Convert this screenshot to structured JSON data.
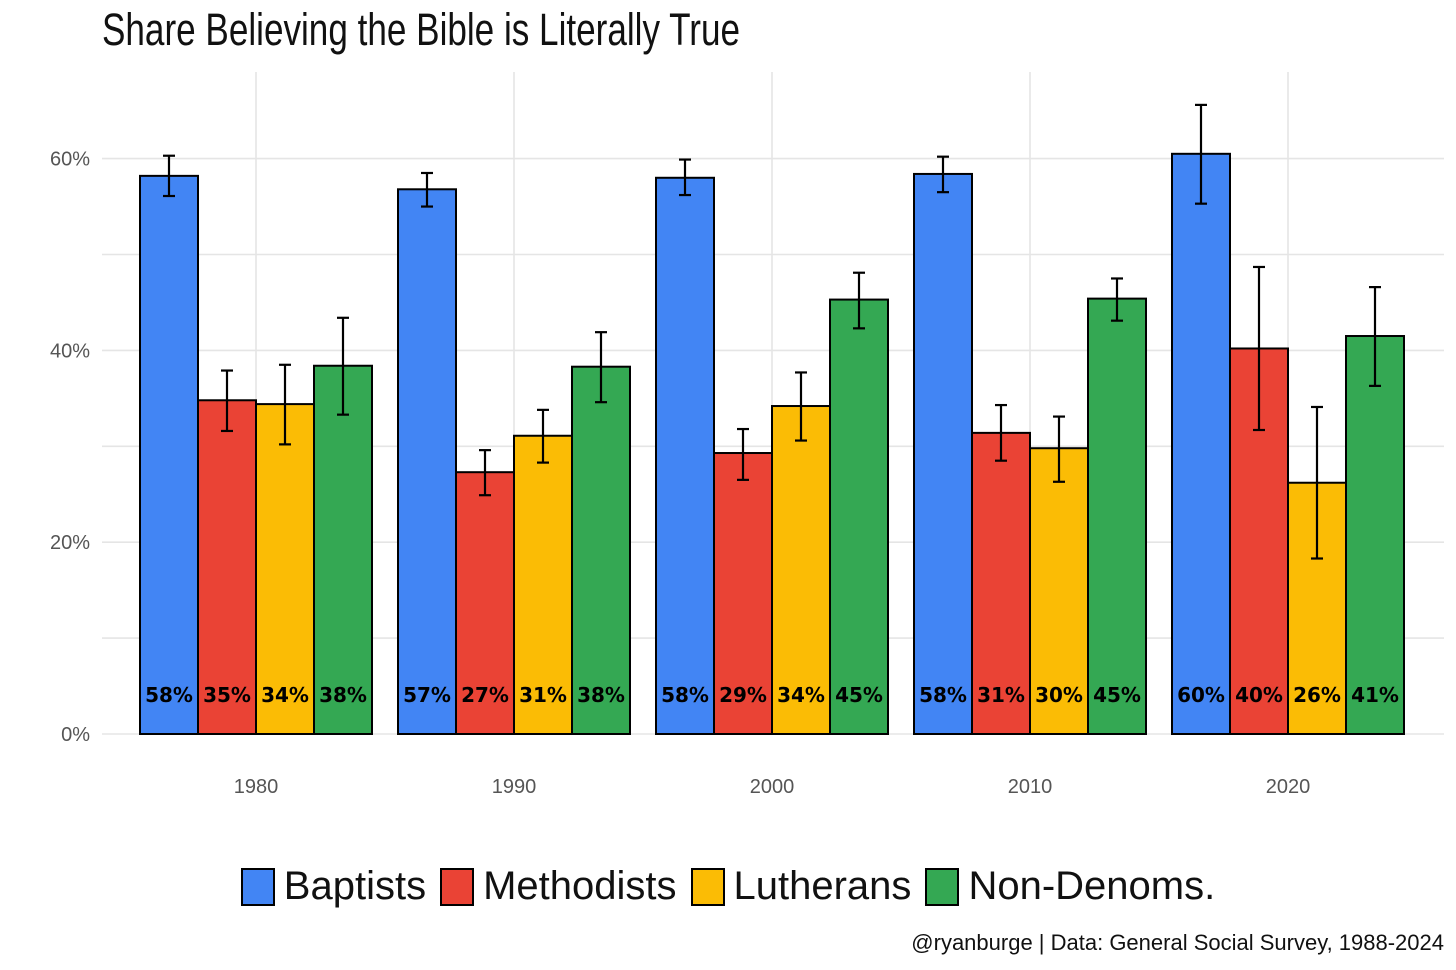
{
  "chart_data": {
    "type": "bar",
    "title": "Share Believing the Bible is Literally True",
    "xlabel": "",
    "ylabel": "",
    "categories": [
      "1980",
      "1990",
      "2000",
      "2010",
      "2020"
    ],
    "ylim": [
      0,
      0.68
    ],
    "yticks": [
      0,
      0.2,
      0.4,
      0.6
    ],
    "ytick_labels": [
      "0%",
      "20%",
      "40%",
      "60%"
    ],
    "grid": true,
    "legend_position": "bottom",
    "series": [
      {
        "name": "Baptists",
        "color": "#4285f4",
        "values": [
          0.582,
          0.568,
          0.58,
          0.584,
          0.605
        ],
        "lower": [
          0.561,
          0.55,
          0.562,
          0.565,
          0.553
        ],
        "upper": [
          0.603,
          0.585,
          0.599,
          0.602,
          0.656
        ],
        "labels": [
          "58%",
          "57%",
          "58%",
          "58%",
          "60%"
        ]
      },
      {
        "name": "Methodists",
        "color": "#ea4335",
        "values": [
          0.348,
          0.273,
          0.293,
          0.314,
          0.402
        ],
        "lower": [
          0.316,
          0.249,
          0.265,
          0.285,
          0.317
        ],
        "upper": [
          0.379,
          0.296,
          0.318,
          0.343,
          0.487
        ],
        "labels": [
          "35%",
          "27%",
          "29%",
          "31%",
          "40%"
        ]
      },
      {
        "name": "Lutherans",
        "color": "#fbbc05",
        "values": [
          0.344,
          0.311,
          0.342,
          0.298,
          0.262
        ],
        "lower": [
          0.302,
          0.283,
          0.306,
          0.263,
          0.183
        ],
        "upper": [
          0.385,
          0.338,
          0.377,
          0.331,
          0.341
        ],
        "labels": [
          "34%",
          "31%",
          "34%",
          "30%",
          "26%"
        ]
      },
      {
        "name": "Non-Denoms.",
        "color": "#34a853",
        "values": [
          0.384,
          0.383,
          0.453,
          0.454,
          0.415
        ],
        "lower": [
          0.333,
          0.346,
          0.423,
          0.431,
          0.363
        ],
        "upper": [
          0.434,
          0.419,
          0.481,
          0.475,
          0.466
        ],
        "labels": [
          "38%",
          "38%",
          "45%",
          "45%",
          "41%"
        ]
      }
    ]
  },
  "caption": "@ryanburge | Data: General Social Survey, 1988-2024"
}
